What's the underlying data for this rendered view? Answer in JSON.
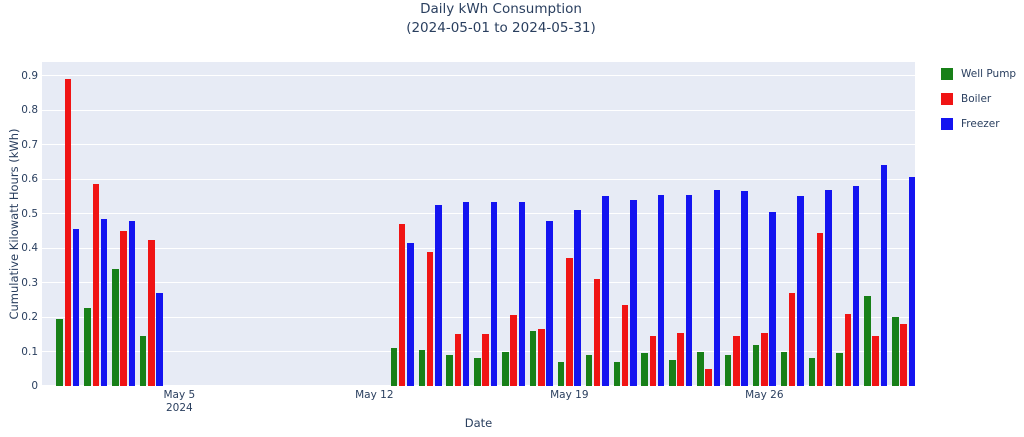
{
  "chart_data": {
    "type": "bar",
    "title": "Daily kWh Consumption",
    "subtitle": "(2024-05-01 to 2024-05-31)",
    "xlabel": "Date",
    "ylabel": "Cumulative Kilowatt Hours (kWh)",
    "legend_position": "top-right-outside",
    "grid": true,
    "plot_bg_color": "#e7ebf5",
    "grid_color": "#ffffff",
    "text_color": "#2a3f5f",
    "ylim": [
      0,
      0.94
    ],
    "yticks": [
      0,
      0.1,
      0.2,
      0.3,
      0.4,
      0.5,
      0.6,
      0.7,
      0.8,
      0.9
    ],
    "xlim_days": [
      0.07,
      31.41
    ],
    "xticks": [
      {
        "day": 5,
        "label": "May 5",
        "sublabel": "2024"
      },
      {
        "day": 12,
        "label": "May 12",
        "sublabel": ""
      },
      {
        "day": 19,
        "label": "May 19",
        "sublabel": ""
      },
      {
        "day": 26,
        "label": "May 26",
        "sublabel": ""
      }
    ],
    "days": [
      1,
      2,
      3,
      4,
      13,
      14,
      15,
      16,
      17,
      18,
      19,
      20,
      21,
      22,
      23,
      24,
      25,
      26,
      27,
      28,
      29,
      30,
      31
    ],
    "series": [
      {
        "name": "Well Pump",
        "color": "#188018",
        "values": [
          0.195,
          0.225,
          0.34,
          0.145,
          0.11,
          0.105,
          0.09,
          0.08,
          0.1,
          0.16,
          0.07,
          0.09,
          0.07,
          0.095,
          0.075,
          0.1,
          0.09,
          0.12,
          0.1,
          0.08,
          0.095,
          0.26,
          0.2
        ]
      },
      {
        "name": "Boiler",
        "color": "#f01414",
        "values": [
          0.89,
          0.585,
          0.45,
          0.425,
          0.47,
          0.39,
          0.15,
          0.15,
          0.205,
          0.165,
          0.37,
          0.31,
          0.235,
          0.145,
          0.155,
          0.05,
          0.145,
          0.155,
          0.27,
          0.445,
          0.21,
          0.145,
          0.18
        ]
      },
      {
        "name": "Freezer",
        "color": "#1414f0",
        "values": [
          0.455,
          0.485,
          0.48,
          0.27,
          0.415,
          0.525,
          0.535,
          0.535,
          0.535,
          0.48,
          0.51,
          0.55,
          0.54,
          0.555,
          0.555,
          0.57,
          0.565,
          0.505,
          0.55,
          0.57,
          0.58,
          0.64,
          0.605
        ]
      }
    ]
  }
}
